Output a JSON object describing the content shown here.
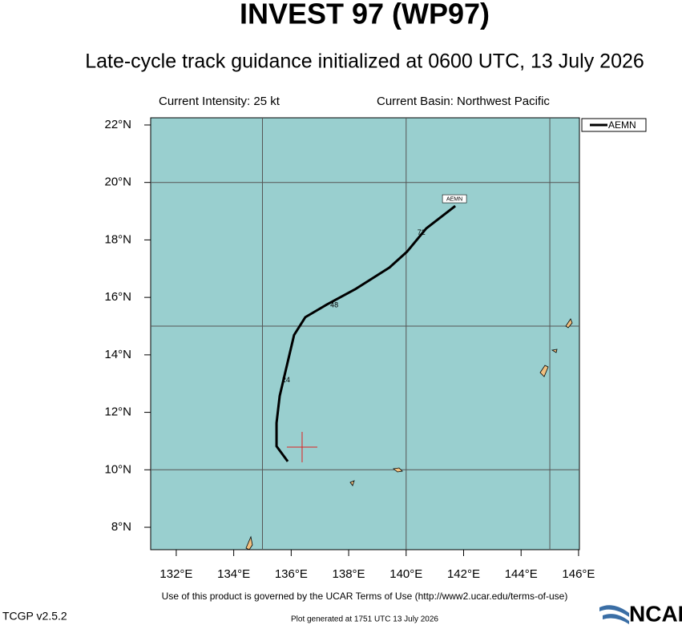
{
  "chart_data": {
    "type": "track",
    "title": "INVEST 97 (WP97)",
    "subtitle": "Late-cycle track guidance initialized at 0600 UTC, 13 July 2026",
    "intensity": "Current Intensity: 25 kt",
    "basin": "Current Basin: Northwest Pacific",
    "xlim": [
      131.11,
      146.03
    ],
    "ylim": [
      7.22,
      22.25
    ],
    "xticks": [
      {
        "value": 132,
        "label": "132°E"
      },
      {
        "value": 134,
        "label": "134°E"
      },
      {
        "value": 136,
        "label": "136°E"
      },
      {
        "value": 138,
        "label": "138°E"
      },
      {
        "value": 140,
        "label": "140°E"
      },
      {
        "value": 142,
        "label": "142°E"
      },
      {
        "value": 144,
        "label": "144°E"
      },
      {
        "value": 146,
        "label": "146°E"
      }
    ],
    "yticks": [
      {
        "value": 8,
        "label": "8°N"
      },
      {
        "value": 10,
        "label": "10°N"
      },
      {
        "value": 12,
        "label": "12°N"
      },
      {
        "value": 14,
        "label": "14°N"
      },
      {
        "value": 16,
        "label": "16°N"
      },
      {
        "value": 18,
        "label": "18°N"
      },
      {
        "value": 20,
        "label": "20°N"
      },
      {
        "value": 22,
        "label": "22°N"
      }
    ],
    "xgrid": [
      135,
      140,
      145
    ],
    "ygrid": [
      10,
      15,
      20
    ],
    "series": [
      {
        "name": "AEMN",
        "color": "#000000",
        "x": [
          135.88,
          135.49,
          135.49,
          135.6,
          136.1,
          136.49,
          137.24,
          138.22,
          139.42,
          140.03,
          140.7,
          141.71
        ],
        "values": [
          10.29,
          10.82,
          11.63,
          12.57,
          14.69,
          15.31,
          15.75,
          16.28,
          17.04,
          17.59,
          18.4,
          19.18
        ]
      }
    ],
    "annotations": [
      {
        "label": "24",
        "x": 135.82,
        "y": 13.12
      },
      {
        "label": "48",
        "x": 137.5,
        "y": 15.72
      },
      {
        "label": "72",
        "x": 140.53,
        "y": 18.24
      }
    ],
    "current_position": {
      "x": 136.38,
      "y": 10.79,
      "color": "#e02020"
    },
    "terms": "Use of this product is governed by the UCAR Terms of Use (http://www2.ucar.edu/terms-of-use)",
    "version": "TCGP v2.5.2",
    "generated": "Plot generated at 1751 UTC   13 July 2026",
    "logo": "NCAR"
  }
}
